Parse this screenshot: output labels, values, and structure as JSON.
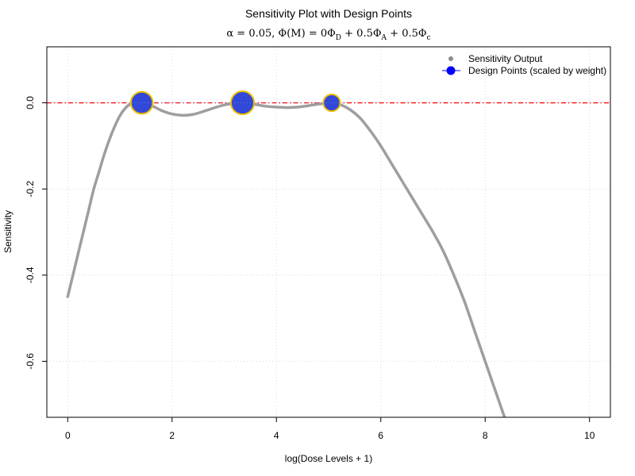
{
  "chart_data": {
    "type": "line",
    "title": "Sensitivity Plot with Design Points",
    "subtitle": {
      "alpha_symbol": "α",
      "alpha_value": " = 0.05, ",
      "phi": "Φ",
      "M": "M",
      "eq_start": " = 0",
      "D": "D",
      "plus1": " + 0.5",
      "A": "A",
      "plus2": " + 0.5",
      "c": "c"
    },
    "xlabel": "log(Dose Levels + 1)",
    "ylabel": "Sensitivity",
    "xlim": [
      -0.4,
      10.4
    ],
    "ylim": [
      -0.73,
      0.13
    ],
    "x_ticks": [
      0,
      2,
      4,
      6,
      8,
      10
    ],
    "x_tick_labels": [
      "0",
      "2",
      "4",
      "6",
      "8",
      "10"
    ],
    "y_ticks": [
      0.0,
      -0.2,
      -0.4,
      -0.6
    ],
    "y_tick_labels": [
      "0.0",
      "-0.2",
      "-0.4",
      "-0.6"
    ],
    "grid": true,
    "reference_line": {
      "y": 0,
      "color": "#ff0000",
      "style": "dashdot"
    },
    "legend": {
      "position": "top-right",
      "entries": [
        "Sensitivity Output",
        "Design Points (scaled by weight)"
      ]
    },
    "series": [
      {
        "name": "Sensitivity Output",
        "color": "#9e9e9e",
        "points": [
          [
            0.0,
            -0.45
          ],
          [
            0.1,
            -0.4
          ],
          [
            0.2,
            -0.35
          ],
          [
            0.3,
            -0.3
          ],
          [
            0.4,
            -0.25
          ],
          [
            0.5,
            -0.2
          ],
          [
            0.6,
            -0.16
          ],
          [
            0.7,
            -0.12
          ],
          [
            0.8,
            -0.085
          ],
          [
            0.9,
            -0.055
          ],
          [
            1.0,
            -0.03
          ],
          [
            1.1,
            -0.013
          ],
          [
            1.2,
            -0.003
          ],
          [
            1.3,
            0.0
          ],
          [
            1.42,
            0.0
          ],
          [
            1.6,
            -0.006
          ],
          [
            1.8,
            -0.018
          ],
          [
            2.0,
            -0.026
          ],
          [
            2.2,
            -0.029
          ],
          [
            2.4,
            -0.027
          ],
          [
            2.6,
            -0.02
          ],
          [
            2.8,
            -0.012
          ],
          [
            3.0,
            -0.005
          ],
          [
            3.2,
            -0.001
          ],
          [
            3.35,
            0.0
          ],
          [
            3.6,
            -0.004
          ],
          [
            3.8,
            -0.008
          ],
          [
            4.0,
            -0.01
          ],
          [
            4.2,
            -0.011
          ],
          [
            4.4,
            -0.01
          ],
          [
            4.6,
            -0.007
          ],
          [
            4.8,
            -0.003
          ],
          [
            5.06,
            0.0
          ],
          [
            5.2,
            -0.003
          ],
          [
            5.4,
            -0.015
          ],
          [
            5.6,
            -0.035
          ],
          [
            5.8,
            -0.065
          ],
          [
            6.0,
            -0.1
          ],
          [
            6.2,
            -0.14
          ],
          [
            6.4,
            -0.18
          ],
          [
            6.6,
            -0.22
          ],
          [
            6.8,
            -0.26
          ],
          [
            7.0,
            -0.3
          ],
          [
            7.2,
            -0.345
          ],
          [
            7.4,
            -0.4
          ],
          [
            7.6,
            -0.46
          ],
          [
            7.8,
            -0.53
          ],
          [
            8.0,
            -0.6
          ],
          [
            8.2,
            -0.67
          ],
          [
            8.4,
            -0.74
          ]
        ]
      },
      {
        "name": "Design Points (scaled by weight)",
        "color": "#3148d8",
        "outline": "#f0c000",
        "x": [
          1.42,
          3.35,
          5.06
        ],
        "y": [
          0.0,
          0.0,
          0.0
        ],
        "weights": [
          0.38,
          0.42,
          0.2
        ]
      }
    ]
  }
}
